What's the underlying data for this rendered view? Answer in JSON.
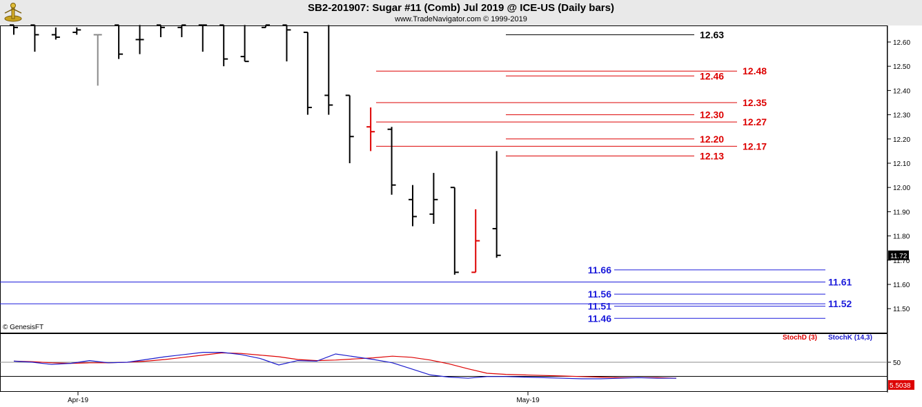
{
  "title": "SB2-201907:  Sugar #11 (Comb) Jul 2019 @ ICE-US  (Daily bars)",
  "subtitle": "www.TradeNavigator.com © 1999-2019",
  "copyright": "© GenesisFT",
  "chart_data": [
    {
      "type": "ohlc",
      "price_axis": {
        "ticks": [
          "12.60",
          "12.50",
          "12.40",
          "12.30",
          "12.20",
          "12.10",
          "12.00",
          "11.90",
          "11.80",
          "11.70",
          "11.60",
          "11.50"
        ],
        "ylim": [
          11.41,
          12.68
        ]
      },
      "last_price": "11.72",
      "x_labels": [
        "Apr-19",
        "May-19"
      ],
      "bars": [
        {
          "o": 12.67,
          "h": 12.67,
          "l": 12.63,
          "c": 12.66,
          "color": "#000000"
        },
        {
          "o": 12.67,
          "h": 12.67,
          "l": 12.56,
          "c": 12.63,
          "color": "#000000"
        },
        {
          "o": 12.63,
          "h": 12.66,
          "l": 12.61,
          "c": 12.62,
          "color": "#000000"
        },
        {
          "o": 12.64,
          "h": 12.66,
          "l": 12.63,
          "c": 12.65,
          "color": "#000000"
        },
        {
          "o": 12.63,
          "h": 12.63,
          "l": 12.42,
          "c": 12.63,
          "color": "#888888"
        },
        {
          "o": 12.67,
          "h": 12.67,
          "l": 12.53,
          "c": 12.55,
          "color": "#000000"
        },
        {
          "o": 12.61,
          "h": 12.67,
          "l": 12.55,
          "c": 12.61,
          "color": "#000000"
        },
        {
          "o": 12.67,
          "h": 12.67,
          "l": 12.62,
          "c": 12.66,
          "color": "#000000"
        },
        {
          "o": 12.66,
          "h": 12.67,
          "l": 12.62,
          "c": 12.67,
          "color": "#000000"
        },
        {
          "o": 12.67,
          "h": 12.67,
          "l": 12.56,
          "c": 12.67,
          "color": "#000000"
        },
        {
          "o": 12.67,
          "h": 12.67,
          "l": 12.5,
          "c": 12.53,
          "color": "#000000"
        },
        {
          "o": 12.54,
          "h": 12.67,
          "l": 12.52,
          "c": 12.52,
          "color": "#000000"
        },
        {
          "o": 12.66,
          "h": 12.67,
          "l": 12.66,
          "c": 12.67,
          "color": "#000000"
        },
        {
          "o": 12.67,
          "h": 12.67,
          "l": 12.52,
          "c": 12.65,
          "color": "#000000"
        },
        {
          "o": 12.64,
          "h": 12.64,
          "l": 12.3,
          "c": 12.33,
          "color": "#000000"
        },
        {
          "o": 12.38,
          "h": 12.67,
          "l": 12.3,
          "c": 12.34,
          "color": "#000000"
        },
        {
          "o": 12.38,
          "h": 12.38,
          "l": 12.1,
          "c": 12.21,
          "color": "#000000"
        },
        {
          "o": 12.25,
          "h": 12.33,
          "l": 12.15,
          "c": 12.23,
          "color": "#dd0000"
        },
        {
          "o": 12.24,
          "h": 12.25,
          "l": 11.97,
          "c": 12.01,
          "color": "#000000"
        },
        {
          "o": 11.95,
          "h": 12.01,
          "l": 11.84,
          "c": 11.88,
          "color": "#000000"
        },
        {
          "o": 11.89,
          "h": 12.06,
          "l": 11.85,
          "c": 11.95,
          "color": "#000000"
        },
        {
          "o": 12.0,
          "h": 12.0,
          "l": 11.64,
          "c": 11.65,
          "color": "#000000"
        },
        {
          "o": 11.65,
          "h": 11.91,
          "l": 11.65,
          "c": 11.78,
          "color": "#dd0000"
        },
        {
          "o": 11.83,
          "h": 12.15,
          "l": 11.71,
          "c": 11.72,
          "color": "#000000"
        }
      ],
      "levels": [
        {
          "value": 12.63,
          "label": "12.63",
          "color": "#000000",
          "side": "left"
        },
        {
          "value": 12.48,
          "label": "12.48",
          "color": "#dd0000",
          "side": "right"
        },
        {
          "value": 12.46,
          "label": "12.46",
          "color": "#dd0000",
          "side": "left"
        },
        {
          "value": 12.35,
          "label": "12.35",
          "color": "#dd0000",
          "side": "right"
        },
        {
          "value": 12.3,
          "label": "12.30",
          "color": "#dd0000",
          "side": "left"
        },
        {
          "value": 12.27,
          "label": "12.27",
          "color": "#dd0000",
          "side": "right"
        },
        {
          "value": 12.2,
          "label": "12.20",
          "color": "#dd0000",
          "side": "left"
        },
        {
          "value": 12.17,
          "label": "12.17",
          "color": "#dd0000",
          "side": "right"
        },
        {
          "value": 12.13,
          "label": "12.13",
          "color": "#dd0000",
          "side": "left"
        },
        {
          "value": 11.66,
          "label": "11.66",
          "color": "#1a1adb",
          "side": "label-left"
        },
        {
          "value": 11.61,
          "label": "11.61",
          "color": "#1a1adb",
          "side": "right"
        },
        {
          "value": 11.56,
          "label": "11.56",
          "color": "#1a1adb",
          "side": "label-left"
        },
        {
          "value": 11.52,
          "label": "11.52",
          "color": "#1a1adb",
          "side": "right"
        },
        {
          "value": 11.51,
          "label": "11.51",
          "color": "#1a1adb",
          "side": "label-left"
        },
        {
          "value": 11.46,
          "label": "11.46",
          "color": "#1a1adb",
          "side": "label-left"
        }
      ]
    },
    {
      "type": "line",
      "series": [
        {
          "name": "StochD (3)",
          "color": "#dd0000",
          "values": [
            52,
            51,
            49,
            48,
            49,
            49,
            50,
            52,
            55,
            59,
            63,
            67,
            66,
            63,
            60,
            55,
            53,
            54,
            56,
            58,
            61,
            59,
            54,
            47,
            38,
            30,
            28,
            27,
            26,
            25,
            24,
            23,
            22,
            22,
            22,
            21
          ]
        },
        {
          "name": "StochK (14,3)",
          "color": "#1a1acc",
          "values": [
            52,
            50,
            46,
            48,
            53,
            49,
            50,
            55,
            60,
            64,
            68,
            68,
            64,
            57,
            45,
            53,
            52,
            65,
            60,
            55,
            49,
            38,
            27,
            23,
            21,
            24,
            24,
            23,
            22,
            21,
            20,
            20,
            21,
            22,
            21,
            21
          ]
        }
      ],
      "y_tick": "50",
      "last_value": "5.5038"
    }
  ]
}
